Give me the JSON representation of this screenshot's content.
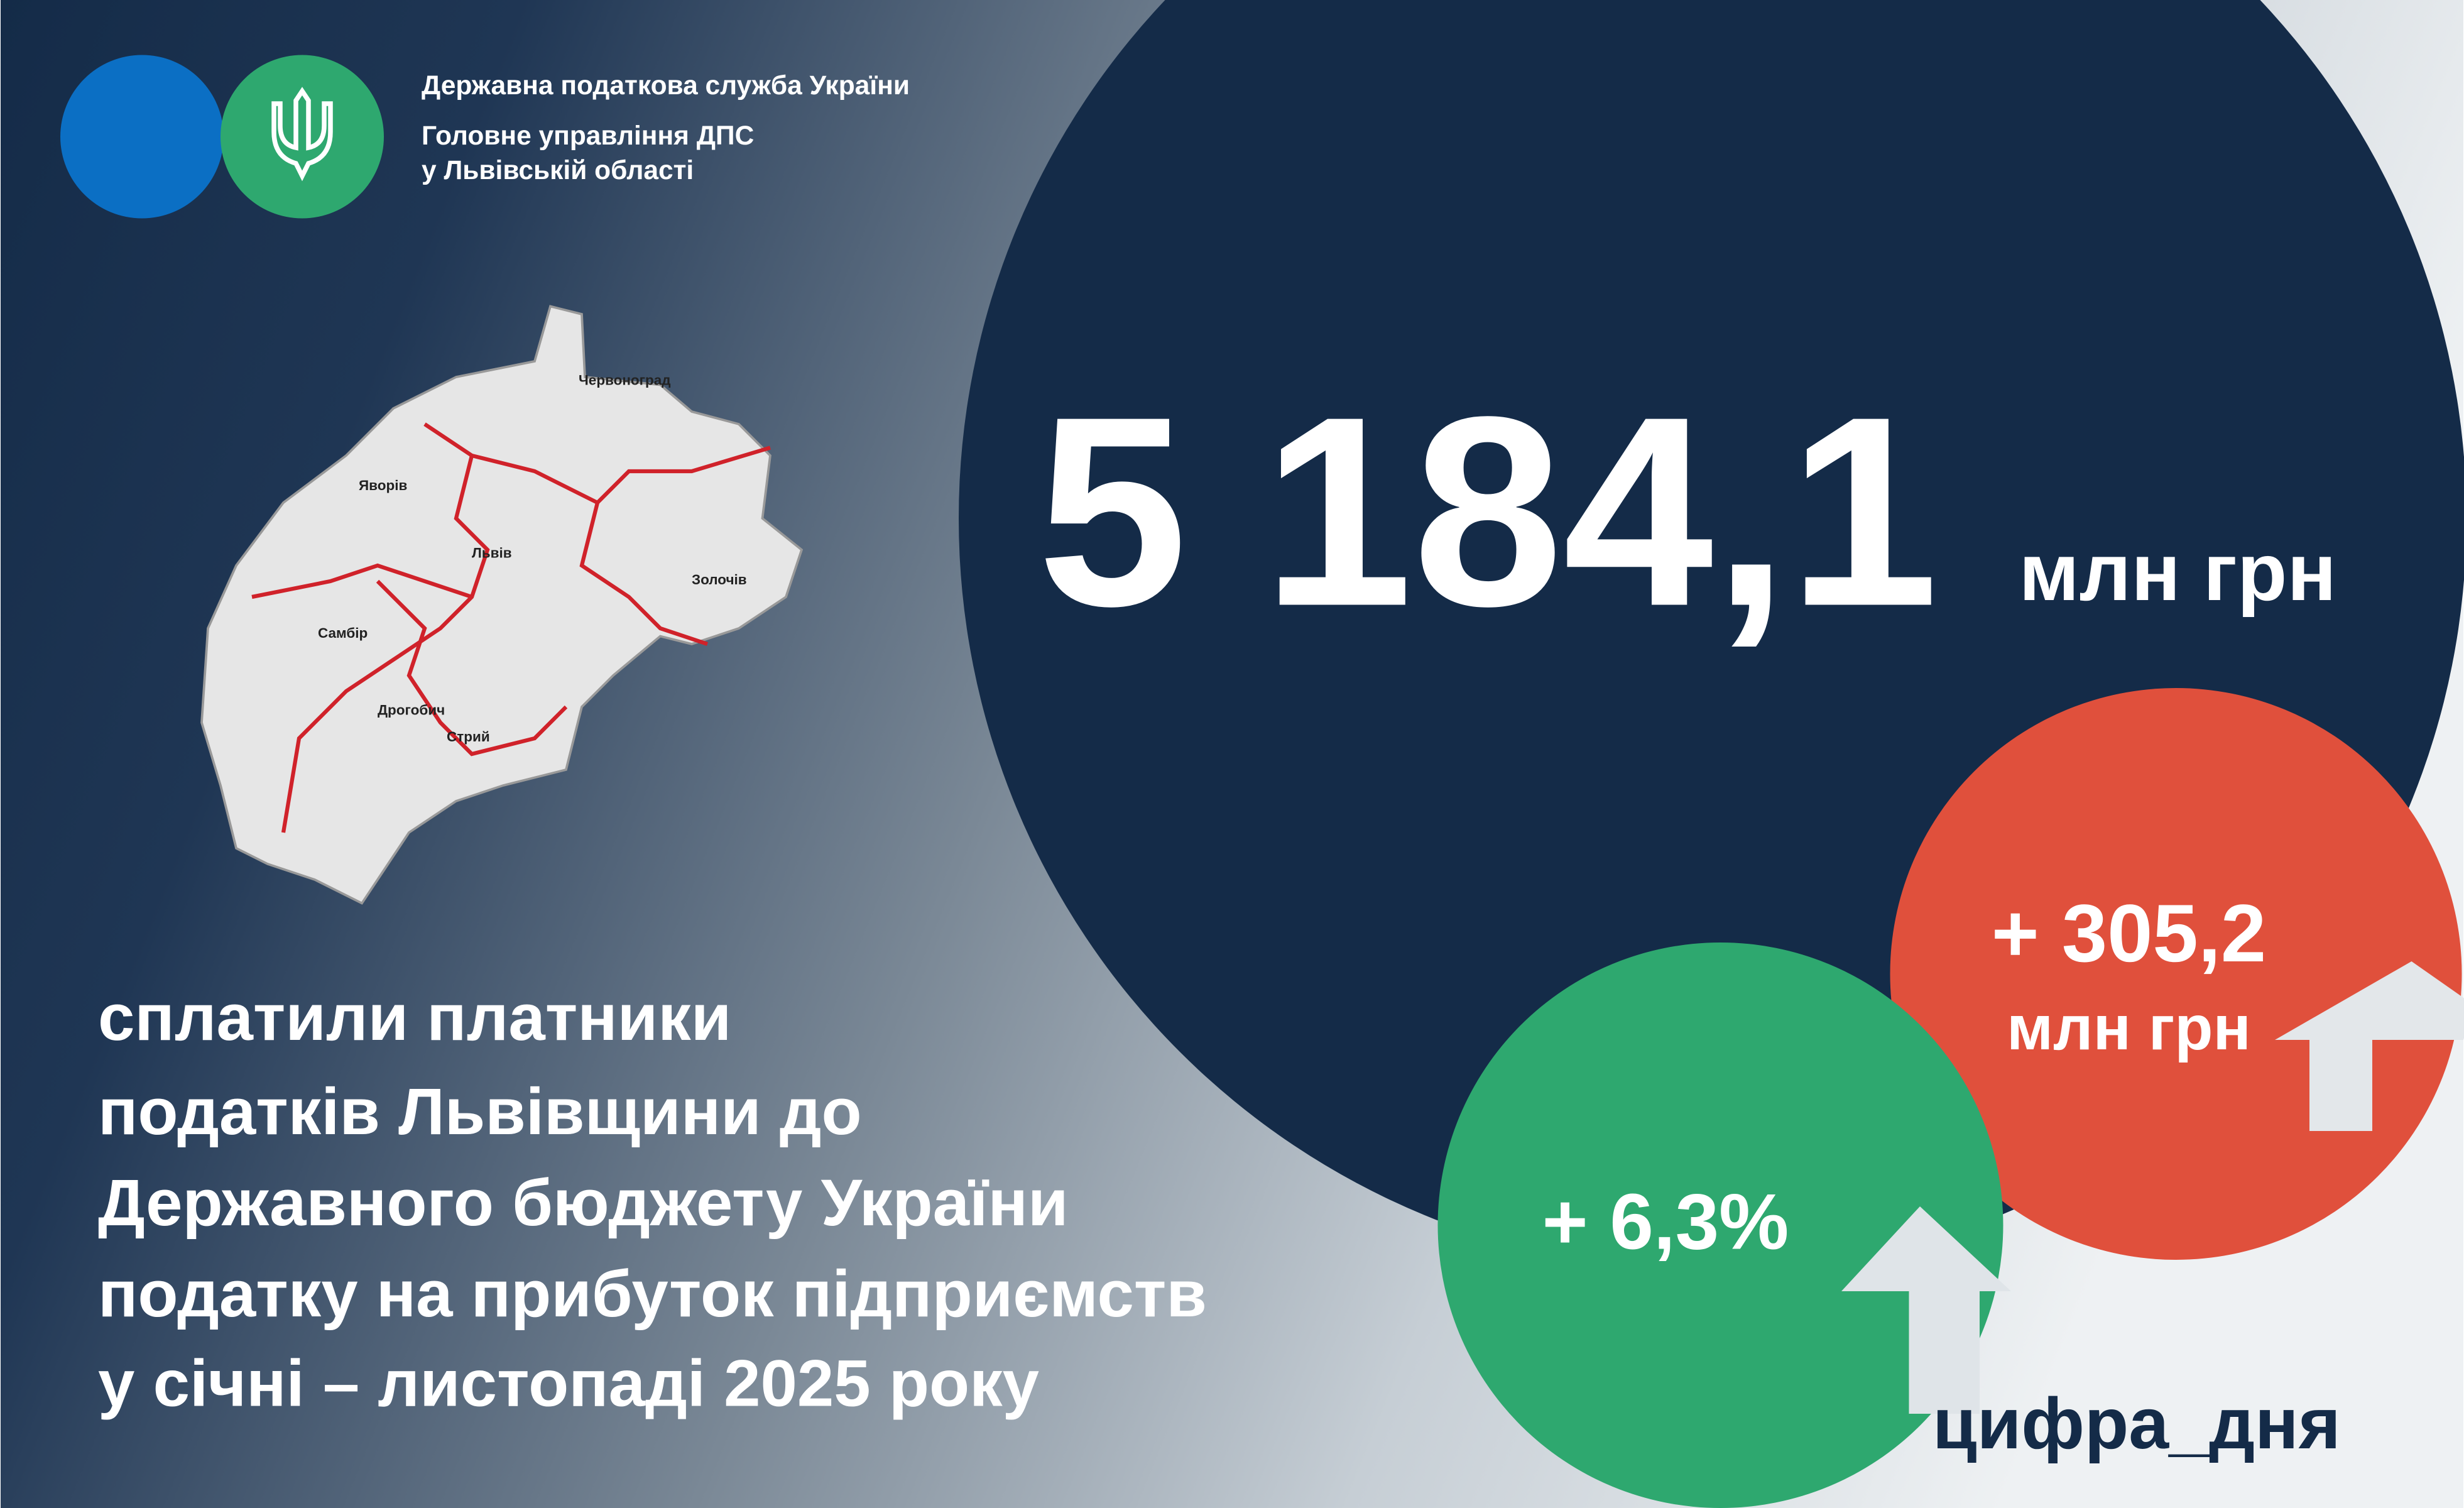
{
  "header": {
    "lines": [
      "Державна податкова служба України",
      "Головне управління ДПС",
      "у Львівській області"
    ]
  },
  "main": {
    "amount": "5 184,1",
    "unit": "млн грн"
  },
  "increase": {
    "amount": "+ 305,2",
    "unit": "млн грн",
    "percent": "+ 6,3%"
  },
  "description": [
    "сплатили платники",
    "податків Львівщини до",
    "Державного бюджету України",
    "податку на прибуток підприємств",
    "у січні – листопаді 2025 року"
  ],
  "hashtag": "цифра_дня",
  "map": {
    "cities": [
      "Червоноград",
      "Яворів",
      "Львів",
      "Самбір",
      "Дрогобич",
      "Стрий",
      "Золочів"
    ]
  }
}
